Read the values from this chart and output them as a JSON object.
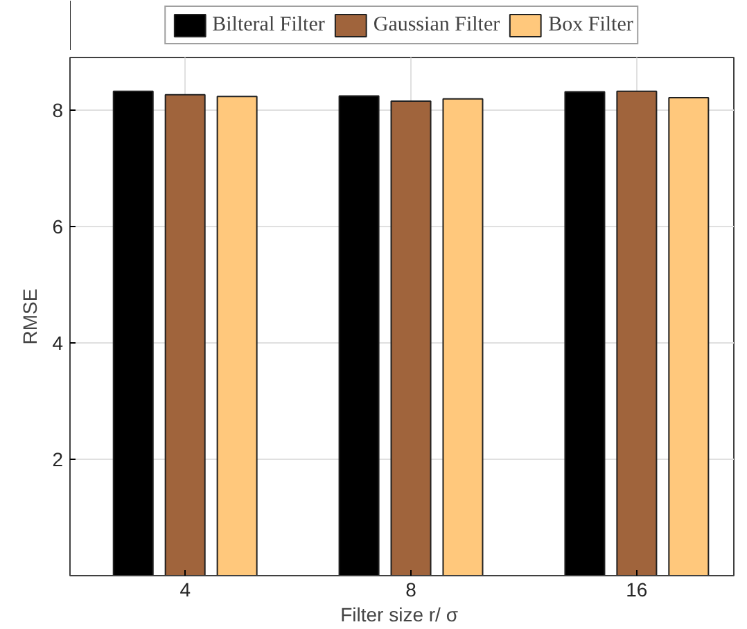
{
  "chart_data": {
    "type": "bar",
    "xlabel": "Filter size r/  σ",
    "ylabel": "RMSE",
    "categories": [
      "4",
      "8",
      "16"
    ],
    "series": [
      {
        "name": "Bilteral Filter",
        "color": "#000000",
        "values": [
          8.32,
          8.24,
          8.31
        ]
      },
      {
        "name": "Gaussian Filter",
        "color": "#a0643c",
        "values": [
          8.26,
          8.15,
          8.32
        ]
      },
      {
        "name": "Box Filter",
        "color": "#ffc87c",
        "values": [
          8.23,
          8.19,
          8.21
        ]
      }
    ],
    "ylim": [
      0,
      8.9
    ],
    "yticks": [
      2,
      4,
      6,
      8
    ],
    "grid": true,
    "legend": "top"
  }
}
